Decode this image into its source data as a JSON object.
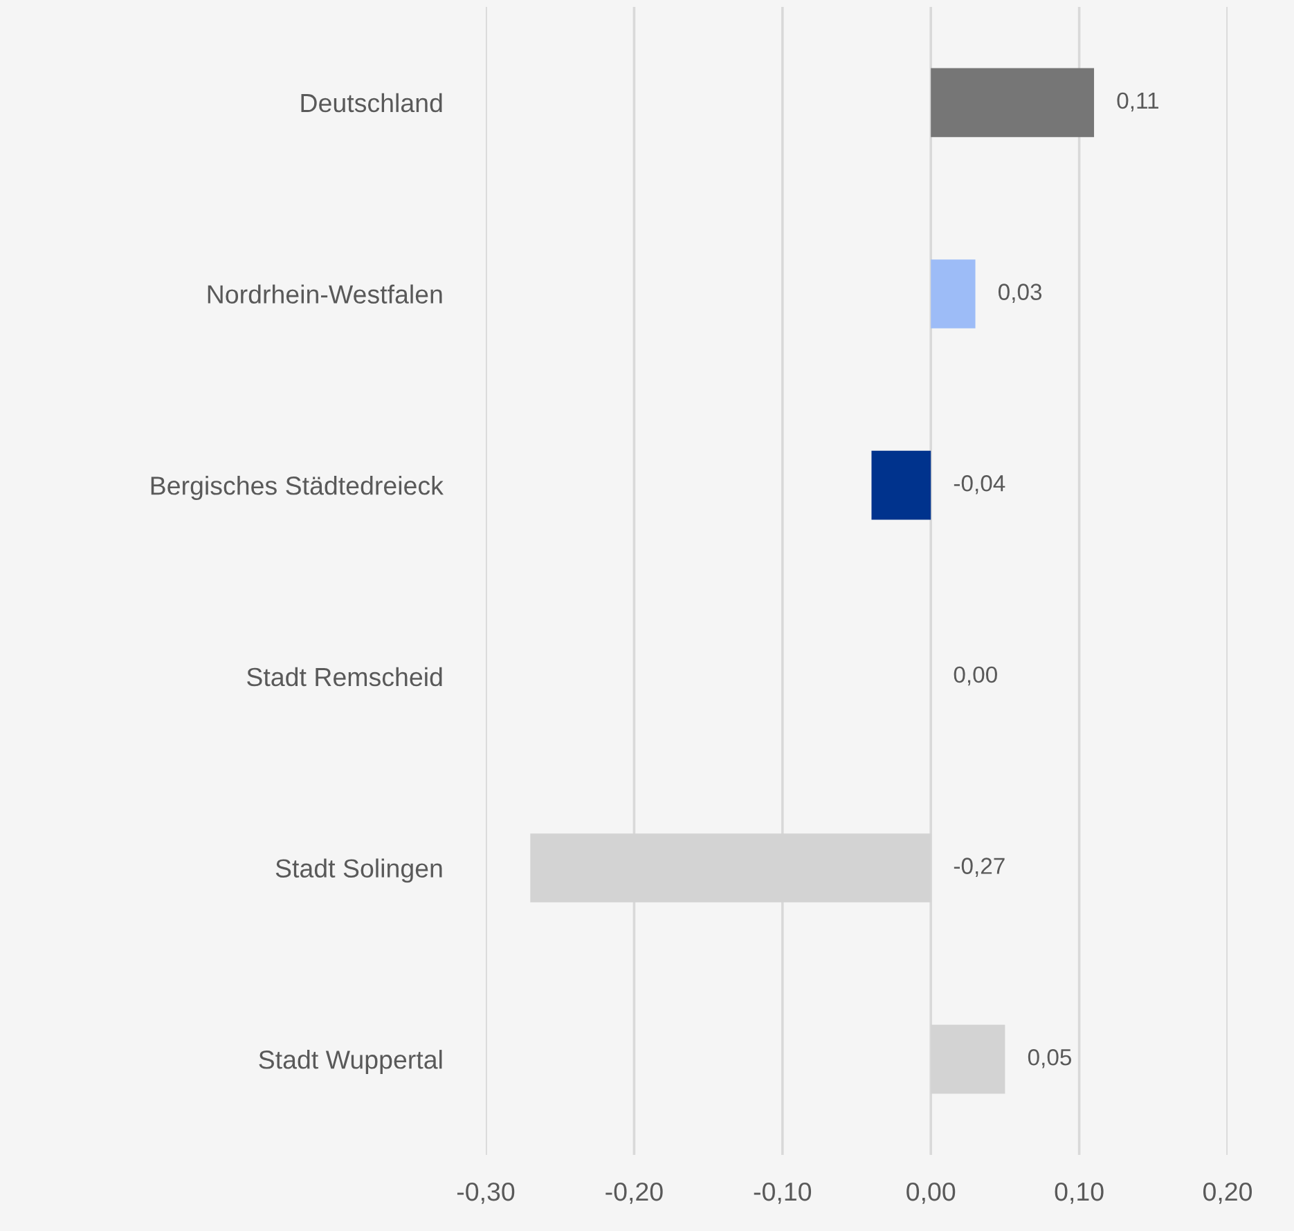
{
  "chart_data": {
    "type": "bar",
    "orientation": "horizontal",
    "categories": [
      "Deutschland",
      "Nordrhein-Westfalen",
      "Bergisches Städtedreieck",
      "Stadt Remscheid",
      "Stadt Solingen",
      "Stadt Wuppertal"
    ],
    "values": [
      0.11,
      0.03,
      -0.04,
      0.0,
      -0.27,
      0.05
    ],
    "colors": [
      "#767676",
      "#9dbcf7",
      "#00338d",
      "#d3d3d3",
      "#d3d3d3",
      "#d3d3d3"
    ],
    "value_labels": [
      "0,11",
      "0,03",
      "-0,04",
      "0,00",
      "-0,27",
      "0,05"
    ],
    "xlim": [
      -0.3,
      0.2
    ],
    "xticks": [
      {
        "value": -0.3,
        "label": "-0,30"
      },
      {
        "value": -0.2,
        "label": "-0,20"
      },
      {
        "value": -0.1,
        "label": "-0,10"
      },
      {
        "value": 0,
        "label": "0,00"
      },
      {
        "value": 0.1,
        "label": "0,10"
      },
      {
        "value": 0.2,
        "label": "0,20"
      }
    ],
    "grid": "x",
    "legend": false
  }
}
